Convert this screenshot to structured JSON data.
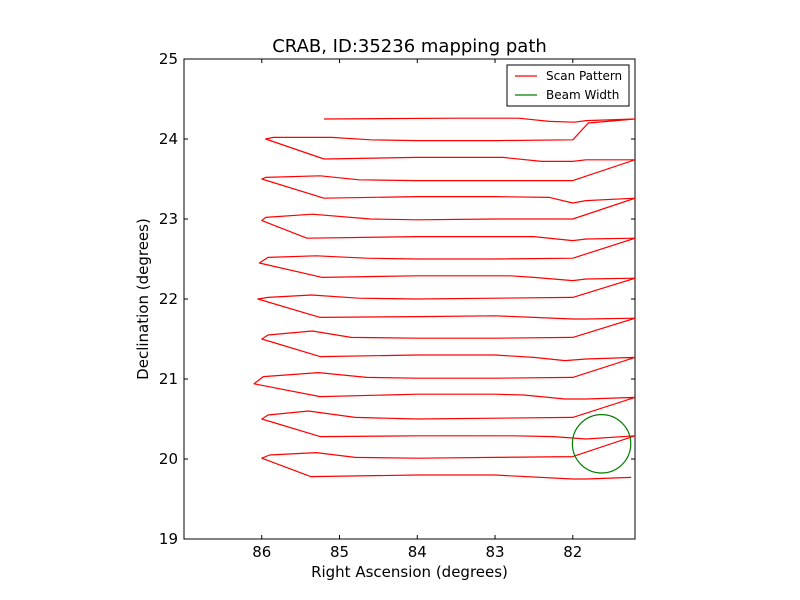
{
  "chart_data": {
    "type": "line",
    "title": "CRAB, ID:35236 mapping path",
    "xlabel": "Right Ascension (degrees)",
    "ylabel": "Declination (degrees)",
    "xlim": [
      87.0,
      81.2
    ],
    "ylim": [
      19,
      25
    ],
    "xticks": [
      86,
      85,
      84,
      83,
      82
    ],
    "xtick_labels": [
      "86",
      "85",
      "84",
      "83",
      "82"
    ],
    "yticks": [
      19,
      20,
      21,
      22,
      23,
      24,
      25
    ],
    "ytick_labels": [
      "19",
      "20",
      "21",
      "22",
      "23",
      "24",
      "25"
    ],
    "grid": false,
    "legend_position": "top-right",
    "series": [
      {
        "name": "Scan Pattern",
        "color": "#ff0000",
        "kind": "line",
        "x": [
          81.25,
          81.83,
          82.0,
          83.0,
          84.0,
          85.37,
          86.0,
          85.9,
          85.3,
          84.8,
          84.0,
          83.0,
          82.0,
          81.2,
          81.83,
          82.25,
          82.75,
          83.0,
          84.0,
          85.25,
          86.0,
          85.92,
          85.4,
          84.8,
          84.0,
          83.0,
          82.0,
          81.2,
          81.83,
          82.1,
          82.63,
          83.0,
          84.0,
          85.25,
          86.1,
          85.98,
          85.27,
          84.65,
          84.0,
          83.0,
          82.0,
          81.2,
          81.83,
          82.1,
          82.5,
          83.0,
          84.0,
          85.25,
          86.0,
          85.92,
          85.35,
          84.85,
          84.0,
          83.0,
          82.0,
          81.2,
          81.83,
          82.0,
          82.5,
          83.0,
          84.0,
          85.25,
          86.05,
          85.92,
          85.36,
          84.75,
          84.0,
          83.0,
          82.0,
          81.2,
          81.83,
          82.0,
          82.5,
          82.8,
          84.0,
          85.22,
          86.03,
          85.92,
          85.3,
          84.65,
          84.0,
          83.0,
          82.0,
          81.2,
          81.83,
          82.0,
          82.5,
          83.0,
          84.0,
          85.42,
          86.0,
          85.95,
          85.35,
          84.6,
          84.0,
          83.0,
          82.0,
          81.2,
          81.83,
          82.0,
          82.3,
          83.0,
          84.0,
          85.2,
          86.0,
          85.95,
          85.25,
          84.75,
          84.0,
          83.0,
          82.0,
          81.2,
          81.83,
          82.0,
          82.4,
          82.9,
          84.0,
          85.2,
          85.95,
          85.85,
          85.1,
          84.6,
          84.0,
          83.0,
          82.0,
          81.8,
          81.2,
          81.83,
          81.98,
          82.3,
          82.7,
          83.5,
          85.2
        ],
        "y": [
          19.77,
          19.75,
          19.75,
          19.8,
          19.8,
          19.78,
          20.01,
          20.05,
          20.08,
          20.02,
          20.01,
          20.02,
          20.03,
          20.29,
          20.25,
          20.28,
          20.29,
          20.29,
          20.29,
          20.28,
          20.5,
          20.55,
          20.6,
          20.52,
          20.5,
          20.51,
          20.52,
          20.77,
          20.75,
          20.75,
          20.8,
          20.81,
          20.81,
          20.78,
          20.94,
          21.03,
          21.08,
          21.02,
          21.01,
          21.01,
          21.02,
          21.27,
          21.25,
          21.23,
          21.27,
          21.3,
          21.3,
          21.28,
          21.5,
          21.55,
          21.6,
          21.52,
          21.51,
          21.51,
          21.52,
          21.76,
          21.75,
          21.75,
          21.77,
          21.79,
          21.78,
          21.77,
          22.0,
          22.02,
          22.05,
          22.01,
          22.0,
          22.01,
          22.02,
          22.26,
          22.25,
          22.23,
          22.27,
          22.29,
          22.29,
          22.27,
          22.45,
          22.52,
          22.54,
          22.51,
          22.5,
          22.5,
          22.51,
          22.76,
          22.75,
          22.73,
          22.78,
          22.78,
          22.78,
          22.76,
          22.98,
          23.02,
          23.06,
          23.0,
          22.99,
          23.0,
          23.0,
          23.26,
          23.23,
          23.2,
          23.27,
          23.28,
          23.28,
          23.26,
          23.5,
          23.52,
          23.54,
          23.49,
          23.48,
          23.48,
          23.48,
          23.74,
          23.74,
          23.72,
          23.72,
          23.77,
          23.77,
          23.75,
          24.0,
          24.02,
          24.02,
          23.99,
          23.98,
          23.98,
          23.99,
          24.2,
          24.25,
          24.23,
          24.21,
          24.22,
          24.26,
          24.26,
          24.25
        ]
      },
      {
        "name": "Beam Width",
        "color": "#008000",
        "kind": "circle",
        "center": [
          81.63,
          20.19
        ],
        "radius_deg": 0.37
      }
    ]
  }
}
